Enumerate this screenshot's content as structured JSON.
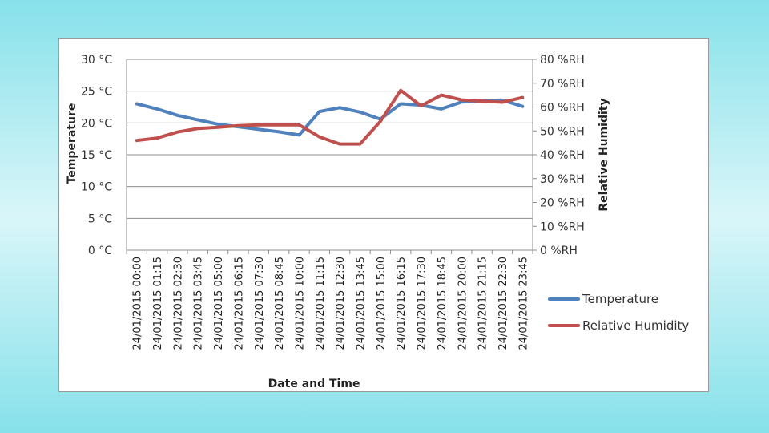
{
  "chart_data": {
    "type": "line",
    "title": "",
    "xlabel": "Date and Time",
    "ylabel": "Temperature",
    "y2label": "Relative Humidity",
    "ylim": [
      0,
      30
    ],
    "y2lim": [
      0,
      80
    ],
    "grid": true,
    "legend_position": "bottom-right",
    "y_ticks": [
      "0 °C",
      "5 °C",
      "10 °C",
      "15 °C",
      "20 °C",
      "25 °C",
      "30 °C"
    ],
    "y2_ticks": [
      "0 %RH",
      "10 %RH",
      "20 %RH",
      "30 %RH",
      "40 %RH",
      "50 %RH",
      "60 %RH",
      "70 %RH",
      "80 %RH"
    ],
    "x": [
      "24/01/2015 00:00",
      "24/01/2015 01:15",
      "24/01/2015 02:30",
      "24/01/2015 03:45",
      "24/01/2015 05:00",
      "24/01/2015 06:15",
      "24/01/2015 07:30",
      "24/01/2015 08:45",
      "24/01/2015 10:00",
      "24/01/2015 11:15",
      "24/01/2015 12:30",
      "24/01/2015 13:45",
      "24/01/2015 15:00",
      "24/01/2015 16:15",
      "24/01/2015 17:30",
      "24/01/2015 18:45",
      "24/01/2015 20:00",
      "24/01/2015 21:15",
      "24/01/2015 22:30",
      "24/01/2015 23:45"
    ],
    "series": [
      {
        "name": "Temperature",
        "axis": "left",
        "color": "#4f81bd",
        "values": [
          23.0,
          22.2,
          21.2,
          20.5,
          19.8,
          19.4,
          19.0,
          18.6,
          18.1,
          21.8,
          22.4,
          21.7,
          20.6,
          23.0,
          22.8,
          22.2,
          23.3,
          23.5,
          23.6,
          22.6
        ]
      },
      {
        "name": "Relative Humidity",
        "axis": "right",
        "color": "#c0504d",
        "values": [
          46.0,
          47.0,
          49.5,
          51.0,
          51.5,
          52.2,
          52.5,
          52.5,
          52.5,
          47.5,
          44.5,
          44.5,
          54.0,
          67.0,
          60.5,
          65.0,
          63.0,
          62.5,
          62.0,
          64.0
        ]
      }
    ]
  }
}
